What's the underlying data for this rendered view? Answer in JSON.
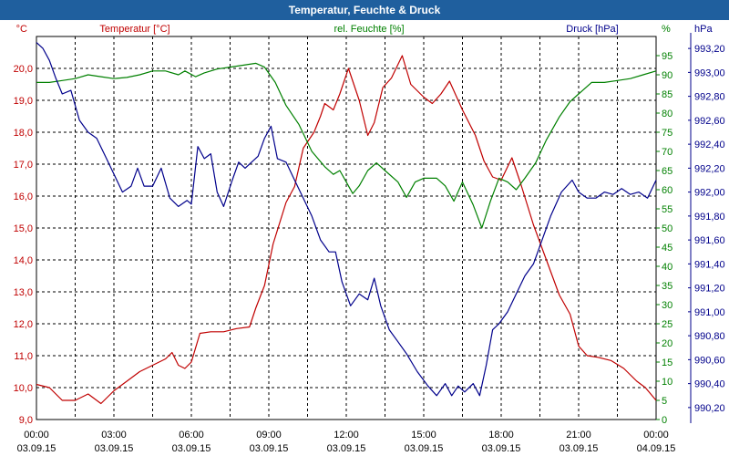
{
  "window": {
    "title": "Temperatur, Feuchte & Druck"
  },
  "colors": {
    "temperature": "#c00000",
    "humidity": "#008000",
    "pressure": "#00008b",
    "titlebar": "#1f5f9e",
    "grid": "#000000"
  },
  "chart_data": {
    "type": "line",
    "title": "Temperatur, Feuchte & Druck",
    "grid": true,
    "x": {
      "ticks": [
        {
          "time": "00:00",
          "date": "03.09.15"
        },
        {
          "time": "03:00",
          "date": "03.09.15"
        },
        {
          "time": "06:00",
          "date": "03.09.15"
        },
        {
          "time": "09:00",
          "date": "03.09.15"
        },
        {
          "time": "12:00",
          "date": "03.09.15"
        },
        {
          "time": "15:00",
          "date": "03.09.15"
        },
        {
          "time": "18:00",
          "date": "03.09.15"
        },
        {
          "time": "21:00",
          "date": "03.09.15"
        },
        {
          "time": "00:00",
          "date": "04.09.15"
        }
      ]
    },
    "axes": {
      "temperature": {
        "unit": "°C",
        "ylim": [
          9.0,
          21.0
        ],
        "ticks": [
          "9,0",
          "10,0",
          "11,0",
          "12,0",
          "13,0",
          "14,0",
          "15,0",
          "16,0",
          "17,0",
          "18,0",
          "19,0",
          "20,0"
        ]
      },
      "humidity": {
        "unit": "%",
        "ylim": [
          0,
          100
        ],
        "ticks": [
          "0",
          "5",
          "10",
          "15",
          "20",
          "25",
          "30",
          "35",
          "40",
          "45",
          "50",
          "55",
          "60",
          "65",
          "70",
          "75",
          "80",
          "85",
          "90",
          "95"
        ]
      },
      "pressure": {
        "unit": "hPa",
        "ylim": [
          990.1,
          993.3
        ],
        "ticks": [
          "990,20",
          "990,40",
          "990,60",
          "990,80",
          "991,00",
          "991,20",
          "991,40",
          "991,60",
          "991,80",
          "992,00",
          "992,20",
          "992,40",
          "992,60",
          "992,80",
          "993,00",
          "993,20"
        ]
      }
    },
    "series": [
      {
        "name": "Temperatur [°C]",
        "axis": "temperature",
        "points": [
          [
            "00:00",
            10.1
          ],
          [
            "00:30",
            10.0
          ],
          [
            "01:00",
            9.6
          ],
          [
            "01:30",
            9.6
          ],
          [
            "02:00",
            9.8
          ],
          [
            "02:30",
            9.5
          ],
          [
            "03:00",
            9.9
          ],
          [
            "03:30",
            10.2
          ],
          [
            "04:00",
            10.5
          ],
          [
            "04:30",
            10.7
          ],
          [
            "05:00",
            10.9
          ],
          [
            "05:15",
            11.1
          ],
          [
            "05:30",
            10.7
          ],
          [
            "05:45",
            10.6
          ],
          [
            "06:00",
            10.8
          ],
          [
            "06:20",
            11.7
          ],
          [
            "06:45",
            11.75
          ],
          [
            "07:15",
            11.75
          ],
          [
            "07:45",
            11.85
          ],
          [
            "08:15",
            11.9
          ],
          [
            "08:30",
            12.5
          ],
          [
            "08:50",
            13.2
          ],
          [
            "09:10",
            14.5
          ],
          [
            "09:40",
            15.8
          ],
          [
            "10:00",
            16.3
          ],
          [
            "10:20",
            17.5
          ],
          [
            "10:45",
            18.0
          ],
          [
            "11:00",
            18.5
          ],
          [
            "11:10",
            18.9
          ],
          [
            "11:30",
            18.7
          ],
          [
            "11:45",
            19.2
          ],
          [
            "12:05",
            20.0
          ],
          [
            "12:30",
            19.0
          ],
          [
            "12:50",
            17.9
          ],
          [
            "13:05",
            18.3
          ],
          [
            "13:25",
            19.4
          ],
          [
            "13:45",
            19.7
          ],
          [
            "14:10",
            20.4
          ],
          [
            "14:30",
            19.5
          ],
          [
            "15:00",
            19.1
          ],
          [
            "15:20",
            18.9
          ],
          [
            "15:40",
            19.2
          ],
          [
            "16:00",
            19.6
          ],
          [
            "16:30",
            18.7
          ],
          [
            "17:00",
            17.9
          ],
          [
            "17:20",
            17.1
          ],
          [
            "17:40",
            16.6
          ],
          [
            "18:00",
            16.5
          ],
          [
            "18:25",
            17.2
          ],
          [
            "18:45",
            16.4
          ],
          [
            "19:15",
            15.1
          ],
          [
            "19:45",
            14.0
          ],
          [
            "20:15",
            12.9
          ],
          [
            "20:40",
            12.3
          ],
          [
            "21:00",
            11.3
          ],
          [
            "21:20",
            11.0
          ],
          [
            "21:45",
            10.95
          ],
          [
            "22:15",
            10.85
          ],
          [
            "22:45",
            10.6
          ],
          [
            "23:15",
            10.2
          ],
          [
            "23:35",
            10.0
          ],
          [
            "24:00",
            9.6
          ]
        ]
      },
      {
        "name": "rel. Feuchte [%]",
        "axis": "humidity",
        "points": [
          [
            "00:00",
            88
          ],
          [
            "00:30",
            88
          ],
          [
            "01:00",
            88.5
          ],
          [
            "01:30",
            89
          ],
          [
            "02:00",
            90
          ],
          [
            "02:30",
            89.5
          ],
          [
            "03:00",
            89
          ],
          [
            "03:30",
            89.3
          ],
          [
            "04:00",
            90
          ],
          [
            "04:30",
            91
          ],
          [
            "05:00",
            91
          ],
          [
            "05:30",
            90
          ],
          [
            "05:45",
            91
          ],
          [
            "06:10",
            89.5
          ],
          [
            "06:30",
            90.5
          ],
          [
            "07:00",
            91.5
          ],
          [
            "07:30",
            92
          ],
          [
            "08:00",
            92.5
          ],
          [
            "08:30",
            93
          ],
          [
            "08:50",
            92
          ],
          [
            "09:15",
            88
          ],
          [
            "09:40",
            82
          ],
          [
            "10:10",
            77
          ],
          [
            "10:40",
            70
          ],
          [
            "11:10",
            66
          ],
          [
            "11:30",
            64
          ],
          [
            "11:45",
            65
          ],
          [
            "12:00",
            62
          ],
          [
            "12:15",
            59
          ],
          [
            "12:30",
            61
          ],
          [
            "12:50",
            65
          ],
          [
            "13:10",
            67
          ],
          [
            "13:30",
            65
          ],
          [
            "14:00",
            62
          ],
          [
            "14:20",
            58
          ],
          [
            "14:40",
            62
          ],
          [
            "15:00",
            63
          ],
          [
            "15:30",
            63
          ],
          [
            "15:50",
            61
          ],
          [
            "16:10",
            57
          ],
          [
            "16:30",
            62
          ],
          [
            "16:55",
            56
          ],
          [
            "17:15",
            50
          ],
          [
            "17:35",
            57
          ],
          [
            "17:55",
            63
          ],
          [
            "18:15",
            62
          ],
          [
            "18:35",
            60
          ],
          [
            "18:55",
            63
          ],
          [
            "19:20",
            67
          ],
          [
            "19:45",
            73
          ],
          [
            "20:15",
            79
          ],
          [
            "20:40",
            83
          ],
          [
            "21:00",
            85
          ],
          [
            "21:30",
            88
          ],
          [
            "22:00",
            88
          ],
          [
            "22:30",
            88.5
          ],
          [
            "23:00",
            89
          ],
          [
            "23:30",
            90
          ],
          [
            "24:00",
            91
          ]
        ]
      },
      {
        "name": "Druck [hPa]",
        "axis": "pressure",
        "points": [
          [
            "00:00",
            993.25
          ],
          [
            "00:15",
            993.2
          ],
          [
            "00:30",
            993.1
          ],
          [
            "00:45",
            992.95
          ],
          [
            "01:00",
            992.82
          ],
          [
            "01:20",
            992.85
          ],
          [
            "01:40",
            992.6
          ],
          [
            "02:00",
            992.5
          ],
          [
            "02:20",
            992.45
          ],
          [
            "02:40",
            992.3
          ],
          [
            "03:00",
            992.15
          ],
          [
            "03:20",
            992.0
          ],
          [
            "03:40",
            992.05
          ],
          [
            "03:55",
            992.2
          ],
          [
            "04:10",
            992.05
          ],
          [
            "04:30",
            992.05
          ],
          [
            "04:50",
            992.2
          ],
          [
            "05:10",
            991.95
          ],
          [
            "05:30",
            991.88
          ],
          [
            "05:50",
            991.93
          ],
          [
            "06:00",
            991.9
          ],
          [
            "06:15",
            992.38
          ],
          [
            "06:30",
            992.28
          ],
          [
            "06:45",
            992.32
          ],
          [
            "07:00",
            992.0
          ],
          [
            "07:15",
            991.88
          ],
          [
            "07:35",
            992.1
          ],
          [
            "07:50",
            992.25
          ],
          [
            "08:05",
            992.2
          ],
          [
            "08:20",
            992.25
          ],
          [
            "08:35",
            992.3
          ],
          [
            "08:50",
            992.45
          ],
          [
            "09:05",
            992.55
          ],
          [
            "09:20",
            992.28
          ],
          [
            "09:40",
            992.25
          ],
          [
            "10:00",
            992.1
          ],
          [
            "10:20",
            991.95
          ],
          [
            "10:40",
            991.8
          ],
          [
            "11:00",
            991.6
          ],
          [
            "11:20",
            991.5
          ],
          [
            "11:35",
            991.5
          ],
          [
            "11:50",
            991.25
          ],
          [
            "12:10",
            991.05
          ],
          [
            "12:30",
            991.15
          ],
          [
            "12:50",
            991.1
          ],
          [
            "13:05",
            991.28
          ],
          [
            "13:20",
            991.05
          ],
          [
            "13:40",
            990.85
          ],
          [
            "14:00",
            990.75
          ],
          [
            "14:20",
            990.65
          ],
          [
            "14:45",
            990.5
          ],
          [
            "15:10",
            990.38
          ],
          [
            "15:30",
            990.3
          ],
          [
            "15:50",
            990.4
          ],
          [
            "16:05",
            990.3
          ],
          [
            "16:20",
            990.38
          ],
          [
            "16:35",
            990.33
          ],
          [
            "16:55",
            990.4
          ],
          [
            "17:10",
            990.3
          ],
          [
            "17:25",
            990.55
          ],
          [
            "17:40",
            990.85
          ],
          [
            "17:55",
            990.9
          ],
          [
            "18:15",
            991.0
          ],
          [
            "18:35",
            991.15
          ],
          [
            "18:55",
            991.3
          ],
          [
            "19:15",
            991.4
          ],
          [
            "19:35",
            991.6
          ],
          [
            "19:55",
            991.8
          ],
          [
            "20:20",
            992.0
          ],
          [
            "20:45",
            992.1
          ],
          [
            "21:00",
            992.0
          ],
          [
            "21:20",
            991.95
          ],
          [
            "21:40",
            991.95
          ],
          [
            "22:00",
            992.0
          ],
          [
            "22:20",
            991.98
          ],
          [
            "22:40",
            992.03
          ],
          [
            "23:00",
            991.98
          ],
          [
            "23:20",
            992.0
          ],
          [
            "23:40",
            991.95
          ],
          [
            "24:00",
            992.1
          ]
        ]
      }
    ]
  }
}
